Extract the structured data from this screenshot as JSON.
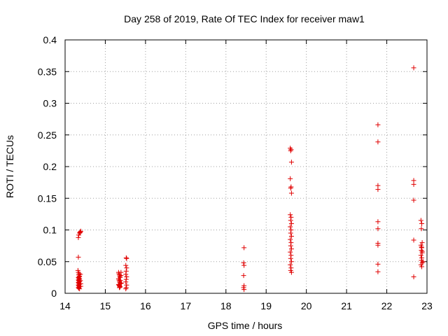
{
  "chart_data": {
    "type": "scatter",
    "title": "Day 258 of 2019, Rate Of TEC Index for receiver maw1",
    "xlabel": "GPS time / hours",
    "ylabel": "ROTI / TECUs",
    "xlim": [
      14,
      23
    ],
    "ylim": [
      0,
      0.4
    ],
    "grid": true,
    "x_ticks": [
      {
        "value": 14,
        "label": "14"
      },
      {
        "value": 15,
        "label": "15"
      },
      {
        "value": 16,
        "label": "16"
      },
      {
        "value": 17,
        "label": "17"
      },
      {
        "value": 18,
        "label": "18"
      },
      {
        "value": 19,
        "label": "19"
      },
      {
        "value": 20,
        "label": "20"
      },
      {
        "value": 21,
        "label": "21"
      },
      {
        "value": 22,
        "label": "22"
      },
      {
        "value": 23,
        "label": "23"
      }
    ],
    "y_ticks": [
      {
        "value": 0,
        "label": "0"
      },
      {
        "value": 0.05,
        "label": "0.05"
      },
      {
        "value": 0.1,
        "label": "0.1"
      },
      {
        "value": 0.15,
        "label": "0.15"
      },
      {
        "value": 0.2,
        "label": "0.2"
      },
      {
        "value": 0.25,
        "label": "0.25"
      },
      {
        "value": 0.3,
        "label": "0.3"
      },
      {
        "value": 0.35,
        "label": "0.35"
      },
      {
        "value": 0.4,
        "label": "0.4"
      }
    ],
    "marker_color": "#e00000",
    "series": [
      {
        "name": "maw1",
        "points": [
          [
            14.33,
            0.057
          ],
          [
            14.32,
            0.036
          ],
          [
            14.33,
            0.033
          ],
          [
            14.35,
            0.031
          ],
          [
            14.34,
            0.029
          ],
          [
            14.36,
            0.027
          ],
          [
            14.35,
            0.026
          ],
          [
            14.33,
            0.025
          ],
          [
            14.34,
            0.024
          ],
          [
            14.36,
            0.023
          ],
          [
            14.35,
            0.022
          ],
          [
            14.33,
            0.021
          ],
          [
            14.34,
            0.02
          ],
          [
            14.36,
            0.019
          ],
          [
            14.35,
            0.018
          ],
          [
            14.33,
            0.017
          ],
          [
            14.34,
            0.016
          ],
          [
            14.36,
            0.015
          ],
          [
            14.35,
            0.014
          ],
          [
            14.33,
            0.013
          ],
          [
            14.34,
            0.012
          ],
          [
            14.36,
            0.011
          ],
          [
            14.35,
            0.01
          ],
          [
            14.33,
            0.009
          ],
          [
            14.34,
            0.008
          ],
          [
            14.36,
            0.007
          ],
          [
            14.38,
            0.02
          ],
          [
            14.39,
            0.015
          ],
          [
            14.38,
            0.03
          ],
          [
            14.39,
            0.011
          ],
          [
            14.33,
            0.088
          ],
          [
            14.34,
            0.092
          ],
          [
            14.36,
            0.095
          ],
          [
            14.37,
            0.096
          ],
          [
            14.38,
            0.097
          ],
          [
            14.39,
            0.098
          ],
          [
            15.33,
            0.033
          ],
          [
            15.34,
            0.031
          ],
          [
            15.35,
            0.029
          ],
          [
            15.36,
            0.027
          ],
          [
            15.37,
            0.025
          ],
          [
            15.33,
            0.023
          ],
          [
            15.34,
            0.021
          ],
          [
            15.35,
            0.019
          ],
          [
            15.36,
            0.017
          ],
          [
            15.37,
            0.015
          ],
          [
            15.33,
            0.014
          ],
          [
            15.34,
            0.013
          ],
          [
            15.35,
            0.012
          ],
          [
            15.36,
            0.011
          ],
          [
            15.37,
            0.01
          ],
          [
            15.38,
            0.02
          ],
          [
            15.39,
            0.028
          ],
          [
            15.4,
            0.016
          ],
          [
            15.39,
            0.033
          ],
          [
            15.35,
            0.009
          ],
          [
            15.52,
            0.056
          ],
          [
            15.53,
            0.055
          ],
          [
            15.51,
            0.044
          ],
          [
            15.53,
            0.04
          ],
          [
            15.52,
            0.035
          ],
          [
            15.51,
            0.03
          ],
          [
            15.53,
            0.026
          ],
          [
            15.52,
            0.022
          ],
          [
            15.51,
            0.018
          ],
          [
            15.53,
            0.013
          ],
          [
            15.52,
            0.009
          ],
          [
            15.51,
            0.007
          ],
          [
            18.45,
            0.072
          ],
          [
            18.44,
            0.048
          ],
          [
            18.45,
            0.044
          ],
          [
            18.44,
            0.028
          ],
          [
            18.45,
            0.012
          ],
          [
            18.44,
            0.009
          ],
          [
            18.45,
            0.006
          ],
          [
            19.6,
            0.229
          ],
          [
            19.62,
            0.227
          ],
          [
            19.61,
            0.225
          ],
          [
            19.63,
            0.207
          ],
          [
            19.6,
            0.181
          ],
          [
            19.62,
            0.168
          ],
          [
            19.61,
            0.166
          ],
          [
            19.63,
            0.158
          ],
          [
            19.6,
            0.124
          ],
          [
            19.62,
            0.12
          ],
          [
            19.61,
            0.115
          ],
          [
            19.63,
            0.11
          ],
          [
            19.6,
            0.105
          ],
          [
            19.62,
            0.1
          ],
          [
            19.61,
            0.095
          ],
          [
            19.63,
            0.09
          ],
          [
            19.6,
            0.085
          ],
          [
            19.62,
            0.08
          ],
          [
            19.61,
            0.075
          ],
          [
            19.63,
            0.07
          ],
          [
            19.6,
            0.065
          ],
          [
            19.62,
            0.06
          ],
          [
            19.61,
            0.055
          ],
          [
            19.63,
            0.05
          ],
          [
            19.6,
            0.045
          ],
          [
            19.62,
            0.04
          ],
          [
            19.61,
            0.036
          ],
          [
            19.63,
            0.033
          ],
          [
            21.78,
            0.266
          ],
          [
            21.78,
            0.239
          ],
          [
            21.78,
            0.17
          ],
          [
            21.78,
            0.164
          ],
          [
            21.78,
            0.113
          ],
          [
            21.78,
            0.102
          ],
          [
            21.78,
            0.079
          ],
          [
            21.78,
            0.076
          ],
          [
            21.78,
            0.046
          ],
          [
            21.78,
            0.034
          ],
          [
            22.67,
            0.356
          ],
          [
            22.67,
            0.178
          ],
          [
            22.67,
            0.172
          ],
          [
            22.67,
            0.147
          ],
          [
            22.67,
            0.084
          ],
          [
            22.67,
            0.026
          ],
          [
            22.85,
            0.115
          ],
          [
            22.87,
            0.11
          ],
          [
            22.86,
            0.102
          ],
          [
            22.88,
            0.08
          ],
          [
            22.85,
            0.076
          ],
          [
            22.87,
            0.072
          ],
          [
            22.86,
            0.068
          ],
          [
            22.88,
            0.064
          ],
          [
            22.85,
            0.06
          ],
          [
            22.87,
            0.056
          ],
          [
            22.86,
            0.052
          ],
          [
            22.88,
            0.048
          ],
          [
            22.85,
            0.045
          ],
          [
            22.87,
            0.042
          ],
          [
            22.86,
            0.073
          ],
          [
            22.88,
            0.066
          ],
          [
            22.9,
            0.05
          ]
        ]
      }
    ]
  }
}
